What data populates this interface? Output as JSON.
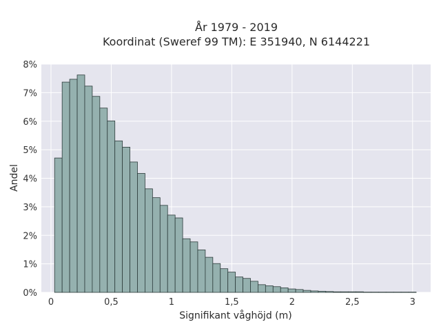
{
  "chart_data": {
    "type": "bar",
    "title_line1": "År 1979 - 2019",
    "title_line2": "Koordinat (Sweref 99 TM): E 351940, N 6144221",
    "xlabel": "Signifikant våghöjd (m)",
    "ylabel": "Andel",
    "x_ticks": [
      "0",
      "0,5",
      "1",
      "1,5",
      "2",
      "2,5",
      "3"
    ],
    "x_tick_values": [
      0,
      0.5,
      1,
      1.5,
      2,
      2.5,
      3
    ],
    "y_ticks": [
      "0%",
      "1%",
      "2%",
      "3%",
      "4%",
      "5%",
      "6%",
      "7%",
      "8%"
    ],
    "y_tick_values": [
      0,
      1,
      2,
      3,
      4,
      5,
      6,
      7,
      8
    ],
    "xlim": [
      -0.08,
      3.15
    ],
    "ylim": [
      0,
      8
    ],
    "bin_width": 0.0625,
    "bin_start": 0.03,
    "values": [
      4.71,
      7.37,
      7.47,
      7.62,
      7.23,
      6.87,
      6.46,
      6.01,
      5.31,
      5.09,
      4.57,
      4.17,
      3.63,
      3.32,
      3.05,
      2.71,
      2.61,
      1.88,
      1.77,
      1.49,
      1.23,
      1.01,
      0.83,
      0.71,
      0.54,
      0.49,
      0.39,
      0.27,
      0.23,
      0.2,
      0.16,
      0.12,
      0.1,
      0.07,
      0.05,
      0.04,
      0.03,
      0.02,
      0.02,
      0.02,
      0.02,
      0.01,
      0.01,
      0.01,
      0.01,
      0.01,
      0.01,
      0.01
    ],
    "grid": true,
    "legend": "none",
    "colors": {
      "bar_fill": "#95b1af",
      "bar_edge": "#2c3b3a",
      "plot_bg": "#e5e5ee",
      "grid": "#ffffff"
    }
  }
}
